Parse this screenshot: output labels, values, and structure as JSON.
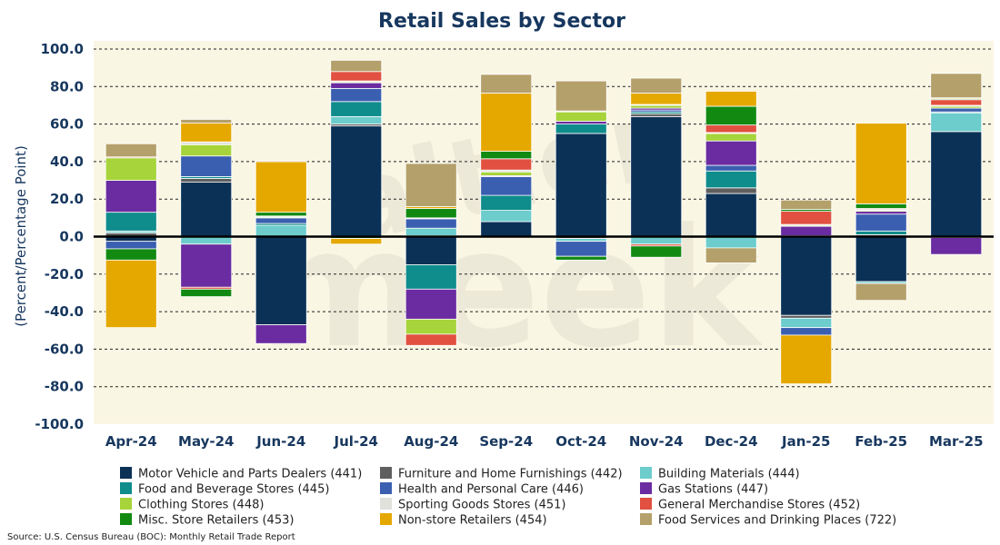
{
  "chart_data": {
    "type": "bar",
    "stacked": true,
    "title": "Retail Sales by Sector",
    "ylabel": "(Percent/Percentage Point)",
    "ylim": [
      -100,
      100
    ],
    "yticks": [
      "100.0",
      "80.0",
      "60.0",
      "40.0",
      "20.0",
      "0.0",
      "-20.0",
      "-40.0",
      "-60.0",
      "-80.0",
      "-100.0"
    ],
    "grid": true,
    "legend_position": "bottom",
    "source": "Source: U.S. Census Bureau (BOC): Monthly Retail Trade Report",
    "categories": [
      "Apr-24",
      "May-24",
      "Jun-24",
      "Jul-24",
      "Aug-24",
      "Sep-24",
      "Oct-24",
      "Nov-24",
      "Dec-24",
      "Jan-25",
      "Feb-25",
      "Mar-25"
    ],
    "series": [
      {
        "name": "Motor Vehicle and Parts Dealers (441)",
        "color": "#0b3156",
        "values": [
          -2.5,
          29,
          -47,
          59,
          -15,
          8,
          55,
          64,
          23,
          -42,
          -24,
          56
        ]
      },
      {
        "name": "Furniture and Home Furnishings (442)",
        "color": "#5f5f5f",
        "values": [
          2,
          2,
          0,
          1,
          0.5,
          0,
          -1,
          1.5,
          3,
          -1.5,
          1,
          -0.5
        ]
      },
      {
        "name": "Building Materials (444)",
        "color": "#6dcccc",
        "values": [
          1,
          -4,
          6,
          4,
          4,
          6,
          -1.5,
          -4,
          -6,
          -5,
          -1,
          10
        ]
      },
      {
        "name": "Food and Beverage Stores (445)",
        "color": "#0f8c8c",
        "values": [
          10,
          1,
          1,
          8,
          -13,
          8,
          5,
          1,
          9,
          0.5,
          2,
          0.5
        ]
      },
      {
        "name": "Health and Personal Care (446)",
        "color": "#3b5fb0",
        "values": [
          -4,
          11,
          3,
          7,
          5,
          10,
          -8,
          1,
          3,
          -4,
          9,
          2
        ]
      },
      {
        "name": "Gas Stations (447)",
        "color": "#6a2ca0",
        "values": [
          17,
          -23,
          -10,
          3,
          -16,
          0.5,
          1.5,
          1,
          13,
          5,
          1.5,
          -9
        ]
      },
      {
        "name": "Clothing Stores (448)",
        "color": "#a6d43a",
        "values": [
          12,
          6,
          0.5,
          0.5,
          -8,
          2,
          5,
          1.5,
          4,
          0.5,
          0.5,
          1
        ]
      },
      {
        "name": "Sporting Goods Stores (451)",
        "color": "#e1e1dc",
        "values": [
          0,
          1.5,
          0.5,
          0.5,
          0.5,
          1,
          0.5,
          0.5,
          0.5,
          0.5,
          0.5,
          0.5
        ]
      },
      {
        "name": "General Merchandise Stores (452)",
        "color": "#e15040",
        "values": [
          0.5,
          -1,
          0,
          5,
          -6,
          6,
          0,
          -1,
          4,
          7,
          0.5,
          3
        ]
      },
      {
        "name": "Misc. Store Retailers (453)",
        "color": "#128a12",
        "values": [
          -6,
          -4,
          2,
          -1,
          5,
          4,
          -2,
          -6,
          10,
          1,
          2.5,
          0.5
        ]
      },
      {
        "name": "Non-store Retailers (454)",
        "color": "#e5a800",
        "values": [
          -36,
          10,
          27,
          -3,
          1,
          31,
          0,
          6,
          8,
          -26,
          43,
          0.5
        ]
      },
      {
        "name": "Food Services and Drinking Places (722)",
        "color": "#b4a06a",
        "values": [
          7,
          2,
          0.5,
          6,
          23,
          10,
          16,
          8,
          -8,
          5,
          -9,
          13
        ]
      }
    ]
  }
}
